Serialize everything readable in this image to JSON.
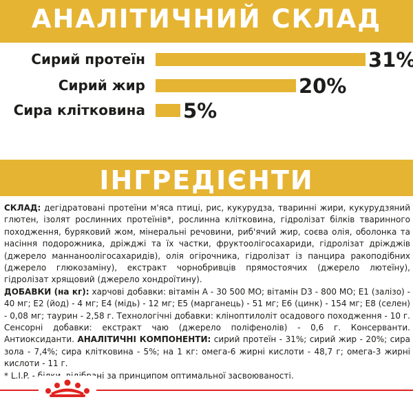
{
  "analytic_section": {
    "title": "АНАЛІТИЧНИЙ СКЛАД",
    "rows": [
      {
        "label": "Сирий протеїн",
        "value": "31%",
        "percent": 31
      },
      {
        "label": "Сирий жир",
        "value": "20%",
        "percent": 20
      },
      {
        "label": "Сира клітковина",
        "value": "5%",
        "percent": 5
      }
    ]
  },
  "ingredients_section": {
    "title": "ІНГРЕДІЄНТИ",
    "composition_label": "СКЛАД:",
    "composition_text": " дегідратовані протеїни м'яса птиці, рис, кукурудза, тваринні жири, кукурудзяний глютен, ізолят рослинних протеїнів*, рослинна клітковина, гідролізат білків тваринного походження, буряковий жом, мінеральні речовини, риб'ячий жир, соєва олія, оболонка та насіння подорожника, дріжджі та їх частки, фруктоолігосахариди, гідролізат дріжджів (джерело маннаноолігосахаридів), олія огірочника, гідролізат із панцира ракоподібних (джерело глюкозаміну), екстракт чорнобривців прямостоячих (джерело лютеїну), гідролізат хрящовий (джерело хондроїтину).",
    "additives_label": "ДОБАВКИ (на кг):",
    "additives_text": " харчові добавки: вітамін А - 30 500 МО; вітамін D3 - 800 МО; Е1 (залізо) - 40 мг; Е2 (йод) - 4 мг; Е4 (мідь) - 12 мг; Е5 (марганець) - 51 мг; Е6 (цинк) - 154 мг; Е8 (селен) - 0,08 мг; таурин - 2,58 г. Технологічні добавки: клінoптилоліт осадового походження - 10 г. Сенсорні добавки: екстракт чаю (джерело поліфенолів) - 0,6 г. Консерванти. Антиоксиданти. ",
    "analytic_label": "АНАЛІТИЧНІ КОМПОНЕНТИ:",
    "analytic_text": " сирий протеїн - 31%; сирий жир - 20%; сира зола - 7,4%; сира клітковина - 5%; на 1 кг: омега-6 жирні кислоти - 48,7 г; омега-3 жирні кислоти - 11 г.",
    "footnote": "* L.I.P. - білки, відібрані за принципом оптимальної засвоюваності."
  },
  "colors": {
    "accent": "#e6b433",
    "brand_red": "#e0231f",
    "text": "#1d1d1b"
  },
  "logo": {
    "icon": "crown-icon"
  }
}
